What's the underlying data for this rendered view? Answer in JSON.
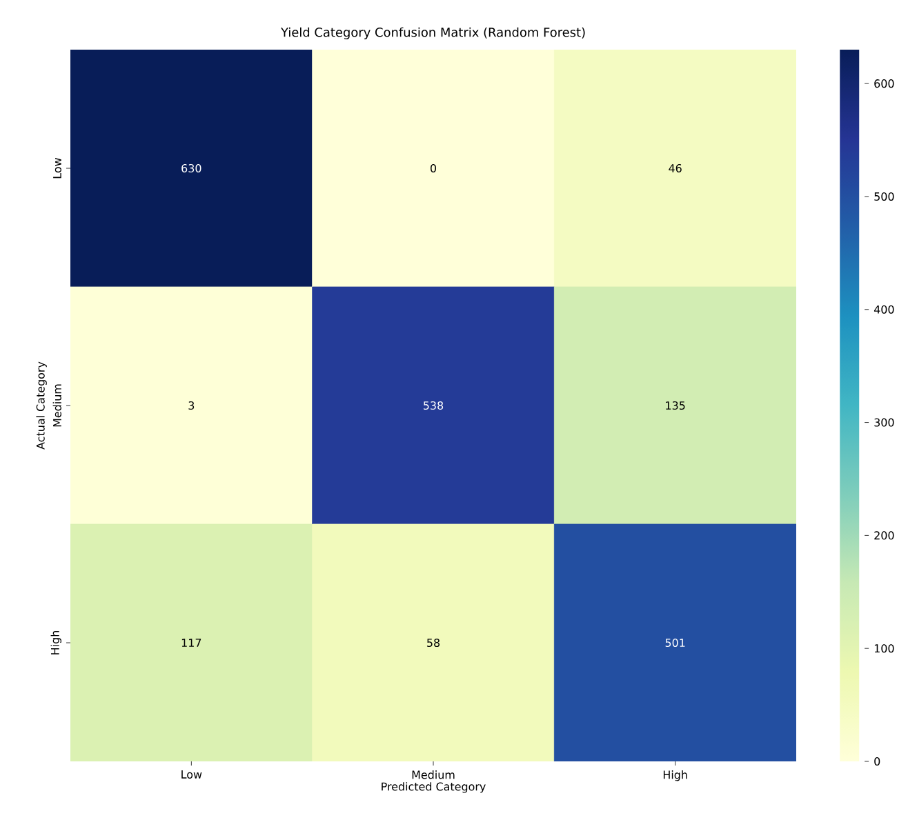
{
  "chart_data": {
    "type": "heatmap",
    "title": "Yield Category Confusion Matrix (Random Forest)",
    "xlabel": "Predicted Category",
    "ylabel": "Actual Category",
    "categories": [
      "Low",
      "Medium",
      "High"
    ],
    "y_categories": [
      "Low",
      "Medium",
      "High"
    ],
    "cells": [
      [
        630,
        0,
        46
      ],
      [
        3,
        538,
        135
      ],
      [
        117,
        58,
        501
      ]
    ],
    "data_labels": true,
    "clim": [
      0,
      630
    ],
    "cticks": [
      0,
      100,
      200,
      300,
      400,
      500,
      600
    ]
  }
}
